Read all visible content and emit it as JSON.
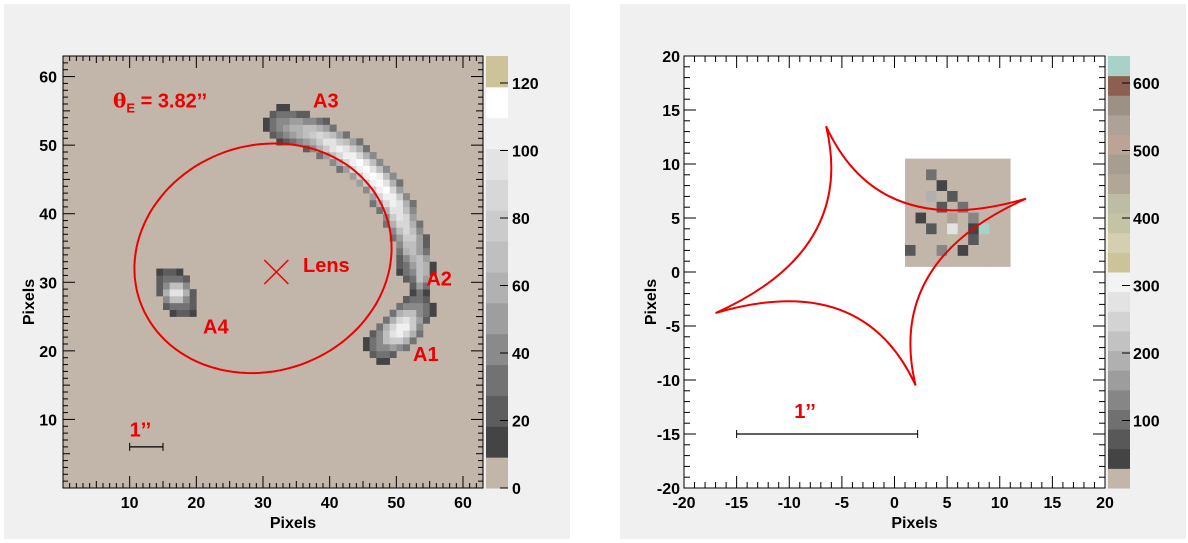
{
  "chart_data": [
    {
      "type": "heatmap",
      "title": "",
      "xlabel": "Pixels",
      "ylabel": "Pixels",
      "xlim": [
        0,
        63
      ],
      "ylim": [
        0,
        63
      ],
      "xticks": [
        10,
        20,
        30,
        40,
        50,
        60
      ],
      "yticks": [
        10,
        20,
        30,
        40,
        50,
        60
      ],
      "colorbar": {
        "ticks": [
          0,
          20,
          40,
          60,
          80,
          100,
          120
        ],
        "range": [
          0,
          128
        ],
        "bins": [
          "#c2b5a9",
          "#444444",
          "#5d5d5d",
          "#727272",
          "#8a8a8a",
          "#9e9e9e",
          "#b1b1b1",
          "#bfbfbf",
          "#cbcbcb",
          "#d7d7d7",
          "#e3e3e3",
          "#f0f0f0",
          "#ffffff",
          "#ccc39a"
        ]
      },
      "background_value": 0,
      "images": [
        {
          "name": "A1",
          "points": [
            [
              48,
              21
            ],
            [
              51,
              23.5
            ],
            [
              53,
              26
            ]
          ],
          "peak": 110,
          "width": 2.0
        },
        {
          "name": "A2",
          "points": [
            [
              53.5,
              29
            ],
            [
              54,
              32
            ],
            [
              53.5,
              35
            ]
          ],
          "peak": 80,
          "width": 1.0
        },
        {
          "name": "A3",
          "points": [
            [
              33,
              53
            ],
            [
              38,
              51.5
            ],
            [
              43,
              48.5
            ],
            [
              47,
              45
            ],
            [
              50,
              41
            ],
            [
              52,
              36.5
            ],
            [
              53,
              32
            ]
          ],
          "peak": 115,
          "width": 1.9
        },
        {
          "name": "A4",
          "points": [
            [
              16,
              30
            ],
            [
              18,
              27
            ]
          ],
          "peak": 95,
          "width": 1.8
        }
      ],
      "critical_curve": {
        "center": [
          30,
          33.5
        ],
        "semi_axes": [
          19.5,
          16.5
        ],
        "rotation_deg": 16
      },
      "lens_position": [
        32,
        31.5
      ],
      "labels": {
        "einstein_radius": "3.82’’",
        "lens": "Lens",
        "A1": "A1",
        "A2": "A2",
        "A3": "A3",
        "A4": "A4",
        "scale": "1’’"
      },
      "label_positions": {
        "einstein_radius": [
          7.5,
          55.5
        ],
        "A3": [
          37.5,
          55.5
        ],
        "A2": [
          54.5,
          29.5
        ],
        "A1": [
          52.5,
          18.5
        ],
        "A4": [
          21,
          22.5
        ],
        "lens": [
          36,
          31.5
        ],
        "scale": [
          10,
          7.5
        ]
      },
      "scale_bar": {
        "x": [
          10,
          15
        ],
        "y": 6,
        "label": "1’’"
      }
    },
    {
      "type": "heatmap",
      "title": "",
      "xlabel": "Pixels",
      "ylabel": "Pixels",
      "xlim": [
        -20,
        20
      ],
      "ylim": [
        -20,
        20
      ],
      "xticks": [
        -20,
        -15,
        -10,
        -5,
        0,
        5,
        10,
        15,
        20
      ],
      "yticks": [
        -20,
        -15,
        -10,
        -5,
        0,
        5,
        10,
        15,
        20
      ],
      "colorbar": {
        "ticks": [
          100,
          200,
          300,
          400,
          500,
          600
        ],
        "range": [
          0,
          640
        ],
        "bins": [
          "#c2b5a9",
          "#444444",
          "#585858",
          "#707070",
          "#868686",
          "#9d9d9d",
          "#b0b0b0",
          "#c2c2c2",
          "#d3d3d3",
          "#e3e3e3",
          "#f3f3f3",
          "#ccc39a",
          "#d3cfb0",
          "#c5c3a5",
          "#bdbda4",
          "#b2a797",
          "#a69e90",
          "#bba395",
          "#aea198",
          "#9b9184",
          "#8d5f52",
          "#a8d2c8"
        ]
      },
      "source_pixels": {
        "x0": 1,
        "y0": 0.5,
        "step": 1,
        "rows": [
          [
            0,
            0,
            0,
            0,
            0,
            0,
            0,
            0,
            0,
            0
          ],
          [
            0,
            0,
            0,
            0,
            0,
            0,
            0,
            0,
            0,
            0
          ],
          [
            0,
            0,
            0,
            0,
            0,
            0,
            0,
            0,
            0,
            0
          ],
          [
            0,
            0,
            0,
            0,
            0,
            0,
            0,
            0,
            0,
            0
          ],
          [
            0,
            0,
            0,
            0,
            0,
            0,
            0,
            0,
            0,
            0
          ],
          [
            0,
            0,
            0,
            0,
            0,
            0,
            0,
            0,
            0,
            0
          ],
          [
            0,
            0,
            0,
            0,
            0,
            0,
            0,
            0,
            0,
            0
          ],
          [
            0,
            0,
            0,
            0,
            0,
            0,
            0,
            0,
            0,
            0
          ],
          [
            0,
            0,
            0,
            0,
            0,
            0,
            0,
            0,
            0,
            0
          ],
          [
            0,
            0,
            0,
            0,
            0,
            0,
            0,
            0,
            0,
            0
          ]
        ],
        "pattern": [
          [
            0,
            0,
            0,
            0,
            0,
            0,
            0,
            0,
            0,
            0
          ],
          [
            0,
            0,
            3,
            0,
            0,
            0,
            0,
            0,
            0,
            0
          ],
          [
            0,
            0,
            0,
            1,
            0,
            0,
            0,
            0,
            0,
            0
          ],
          [
            0,
            0,
            6,
            0,
            2,
            0,
            0,
            0,
            0,
            0
          ],
          [
            0,
            0,
            0,
            2,
            0,
            3,
            0,
            0,
            0,
            0
          ],
          [
            0,
            1,
            0,
            0,
            18,
            0,
            4,
            0,
            0,
            0
          ],
          [
            0,
            0,
            2,
            0,
            9,
            0,
            1,
            21,
            0,
            0
          ],
          [
            0,
            0,
            0,
            0,
            14,
            0,
            2,
            0,
            0,
            0
          ],
          [
            2,
            0,
            0,
            4,
            0,
            1,
            0,
            0,
            0,
            0
          ],
          [
            0,
            0,
            0,
            0,
            0,
            0,
            0,
            0,
            0,
            0
          ]
        ]
      },
      "caustic": {
        "cusps": [
          [
            -6.5,
            13.5
          ],
          [
            12.5,
            6.8
          ],
          [
            2,
            -10.5
          ],
          [
            -17,
            -3.8
          ]
        ]
      },
      "labels": {
        "scale": "1’’"
      },
      "label_positions": {
        "scale": [
          -8.5,
          -13.5
        ]
      },
      "scale_bar": {
        "x": [
          -15,
          2.2
        ],
        "y": -15,
        "label": "1’’"
      }
    }
  ]
}
